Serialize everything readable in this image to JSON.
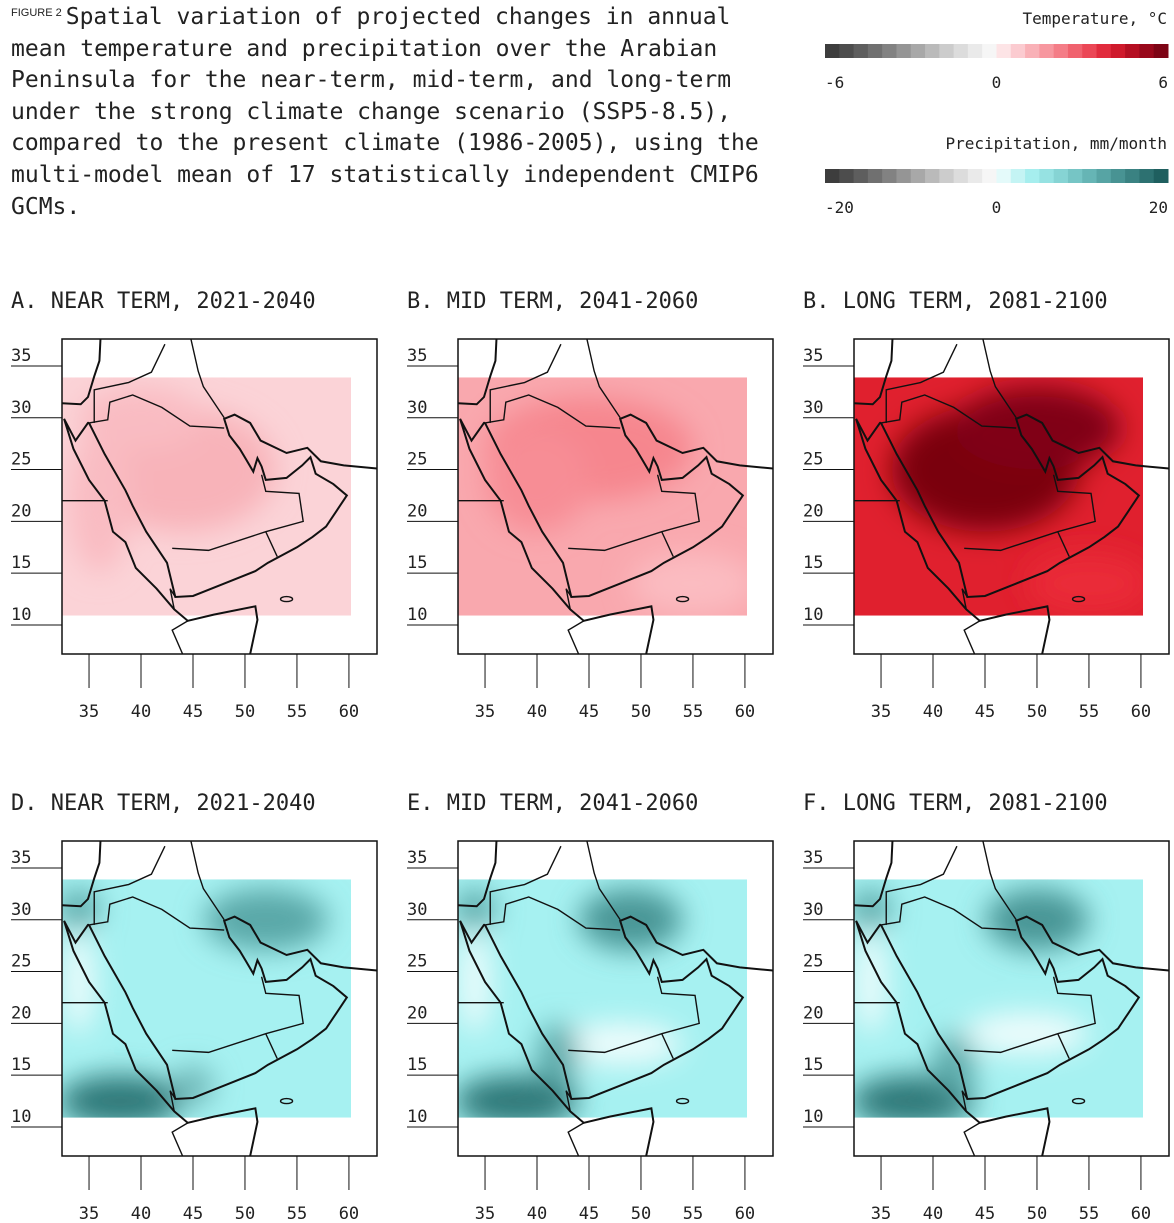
{
  "figure": {
    "label": "FIGURE 2",
    "caption": "Spatial variation of projected changes in annual mean temperature and precipitation over the Arabian Peninsula for the near-term, mid-term, and long-term under the strong climate change scenario (SSP5-8.5), compared to the present climate (1986-2005), using the multi-model mean of 17 statistically independent CMIP6 GCMs."
  },
  "legends": [
    {
      "title": "Temperature, °C",
      "lim": [
        -6,
        6
      ],
      "ticks": [
        -6,
        0,
        6
      ],
      "colors": [
        "#3d3d3d",
        "#4d4d4d",
        "#5e5e5e",
        "#707070",
        "#828282",
        "#959595",
        "#a8a8a8",
        "#bababa",
        "#cccccc",
        "#dcdcdc",
        "#eaeaea",
        "#f6f6f6",
        "#fde4e6",
        "#fbcbd0",
        "#f9b1b7",
        "#f7979f",
        "#f47d87",
        "#f0626e",
        "#eb4756",
        "#e12b3d",
        "#cf1a2c",
        "#b50f22",
        "#99081b",
        "#7d0415"
      ]
    },
    {
      "title": "Precipitation, mm/month",
      "lim": [
        -20,
        20
      ],
      "ticks": [
        -20,
        0,
        20
      ],
      "colors": [
        "#3d3d3d",
        "#4d4d4d",
        "#5e5e5e",
        "#707070",
        "#828282",
        "#959595",
        "#a8a8a8",
        "#bababa",
        "#cccccc",
        "#dcdcdc",
        "#eaeaea",
        "#f6f6f6",
        "#e4fafa",
        "#c4f4f4",
        "#a6eeee",
        "#96e2e2",
        "#86d4d4",
        "#76c5c5",
        "#66b5b5",
        "#57a4a4",
        "#489393",
        "#3a8282",
        "#2d7171",
        "#1f5f5f"
      ]
    }
  ],
  "map_axes": {
    "xlim": [
      32.4,
      62.7
    ],
    "ylim": [
      7.2,
      37.6
    ],
    "xticks": [
      35,
      40,
      45,
      50,
      55,
      60
    ],
    "yticks": [
      10,
      15,
      20,
      25,
      30,
      35
    ]
  },
  "panels": [
    {
      "title": "A. NEAR TERM, 2021-2040"
    },
    {
      "title": "B. MID TERM, 2041-2060"
    },
    {
      "title": "B. LONG TERM, 2081-2100"
    },
    {
      "title": "D. NEAR TERM, 2021-2040"
    },
    {
      "title": "E. MID TERM, 2041-2060"
    },
    {
      "title": "F. LONG TERM, 2081-2100"
    }
  ]
}
